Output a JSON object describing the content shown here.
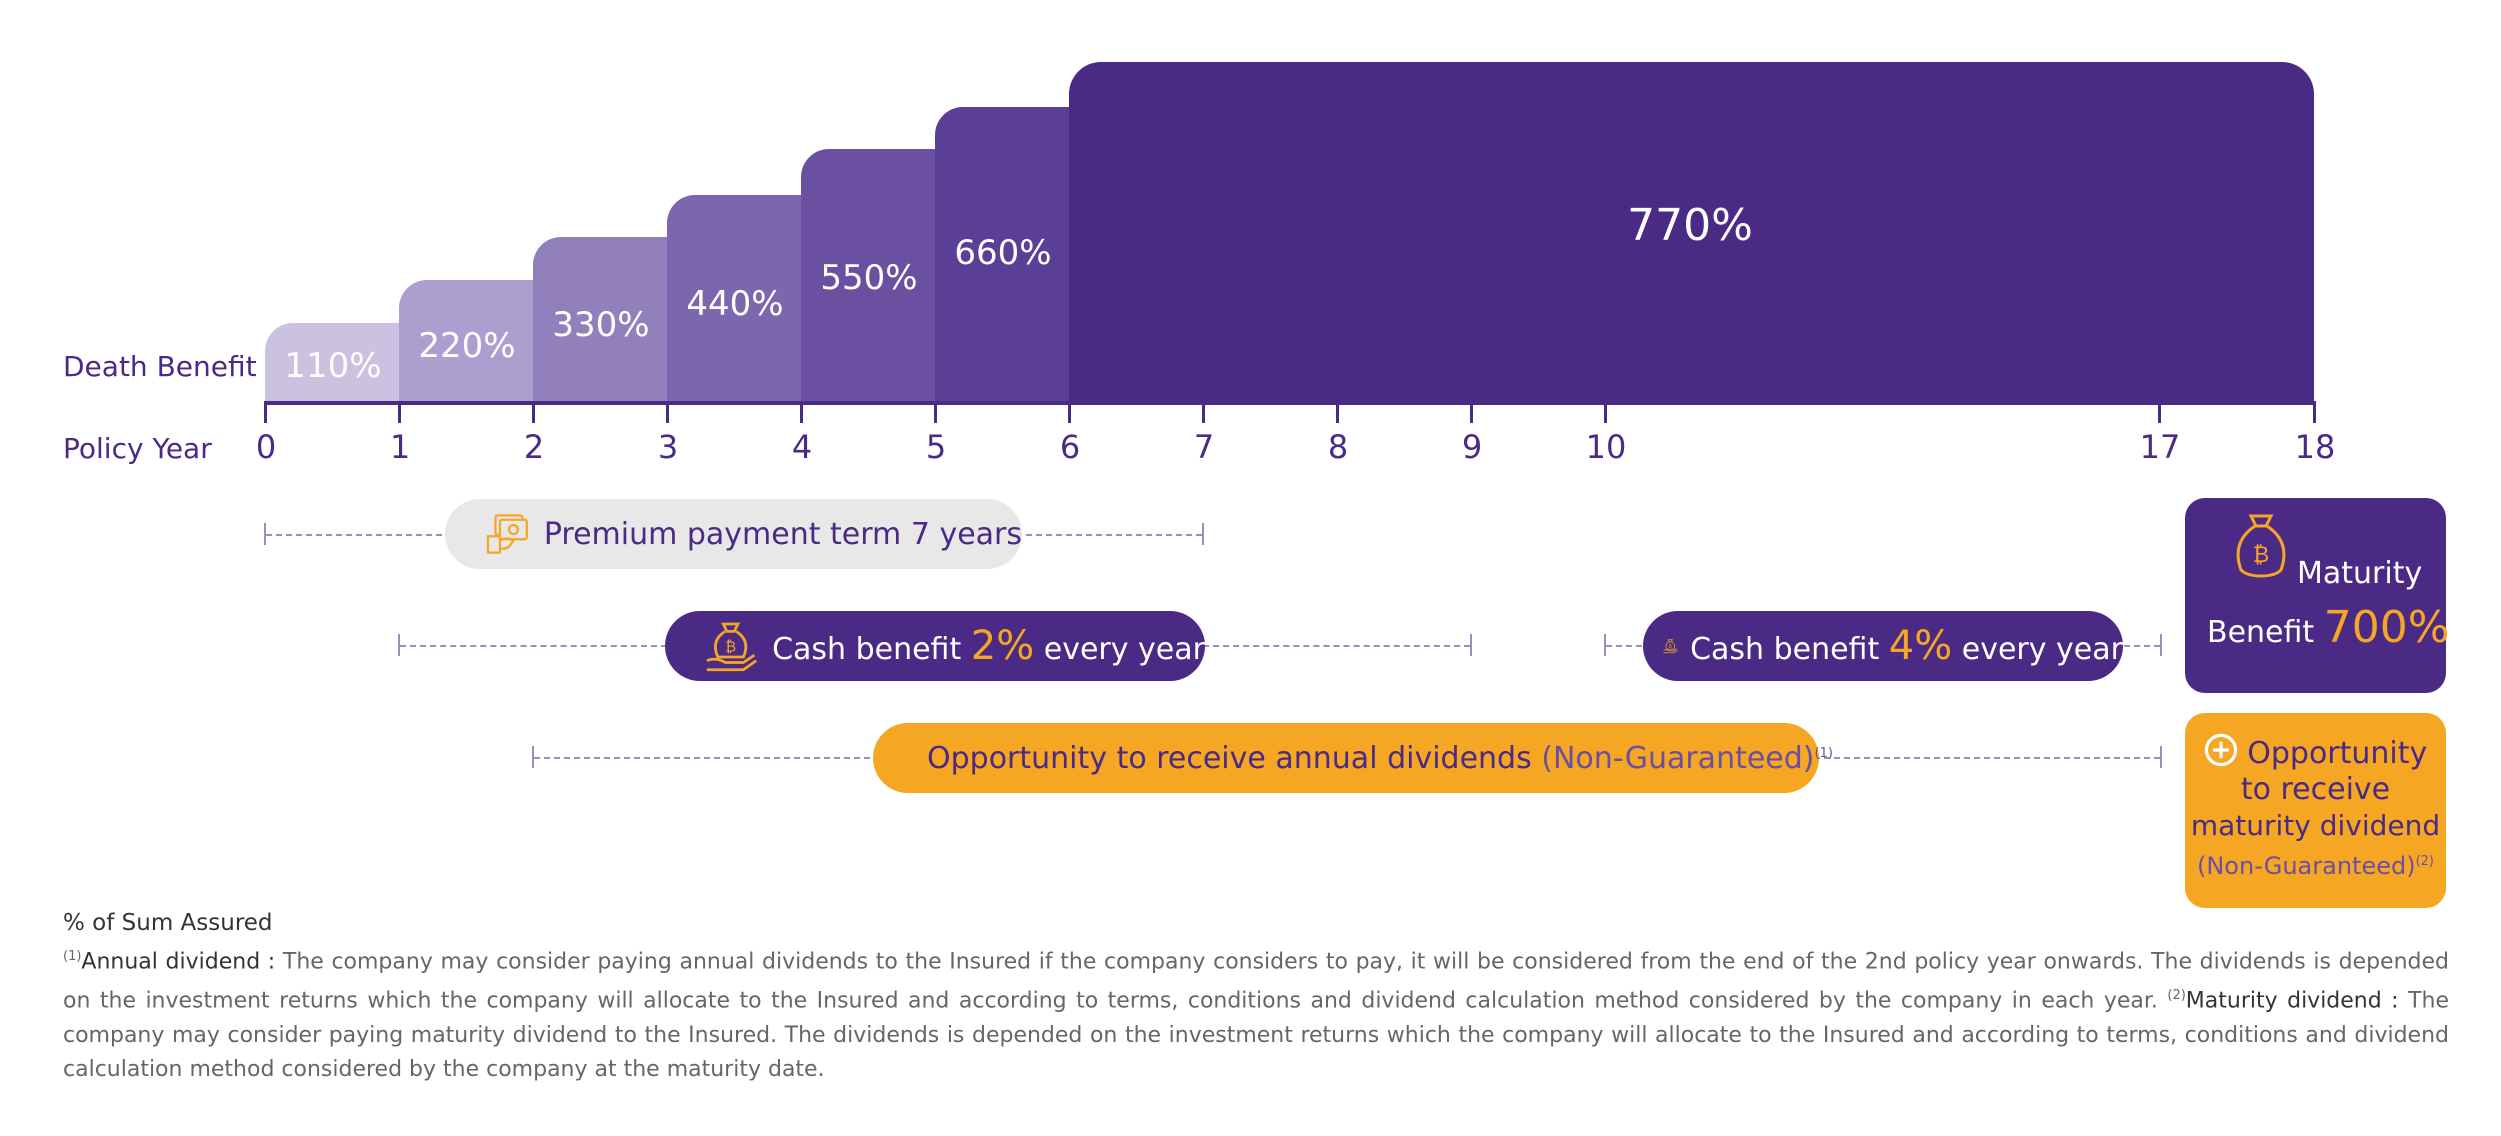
{
  "labels": {
    "death_benefit": "Death Benefit",
    "policy_year": "Policy Year"
  },
  "steps": [
    {
      "value": "110%"
    },
    {
      "value": "220%"
    },
    {
      "value": "330%"
    },
    {
      "value": "440%"
    },
    {
      "value": "550%"
    },
    {
      "value": "660%"
    },
    {
      "value": "770%"
    }
  ],
  "years": [
    "0",
    "1",
    "2",
    "3",
    "4",
    "5",
    "6",
    "7",
    "8",
    "9",
    "10",
    "17",
    "18"
  ],
  "premium": {
    "text": "Premium payment term 7 years"
  },
  "cash1": {
    "pre": "Cash benefit",
    "pct": "2%",
    "post": "every year"
  },
  "cash2": {
    "pre": "Cash benefit",
    "pct": "4%",
    "post": "every year"
  },
  "dividend": {
    "text": "Opportunity to receive annual dividends",
    "note": "(Non-Guaranteed)",
    "sup": "(1)"
  },
  "maturity": {
    "line1": "Maturity",
    "line2": "Benefit",
    "pct": "700%"
  },
  "maturity_div": {
    "line1": "Opportunity",
    "line2": "to receive",
    "line3": "maturity dividend",
    "note": "(Non-Guaranteed)",
    "sup": "(2)"
  },
  "footnote": {
    "unit": "% of Sum Assured",
    "sup1": "(1)",
    "title1": "Annual dividend :",
    "text1": " The company may consider paying annual dividends to the Insured if the company considers to pay, it will be considered from the end of the 2nd policy year onwards. The dividends is depended on the investment returns which the company will allocate to the Insured and according to terms, conditions and dividend calculation method considered by the company in each year. ",
    "sup2": "(2)",
    "title2": "Maturity dividend :",
    "text2": " The company may consider paying maturity dividend to the Insured. The dividends is depended on the investment returns which the company will allocate to the Insured and according to terms, conditions and dividend calculation method considered by the company at the maturity date."
  },
  "colors": {
    "purple_dark": "#4a2a85",
    "orange": "#f5a623",
    "grey_pill": "#e8e8e8",
    "step_colors": [
      "#cbc1e0",
      "#ac9fd0",
      "#9280bd",
      "#7c66ae",
      "#6b50a1",
      "#5b3e95",
      "#4b2a85"
    ]
  }
}
